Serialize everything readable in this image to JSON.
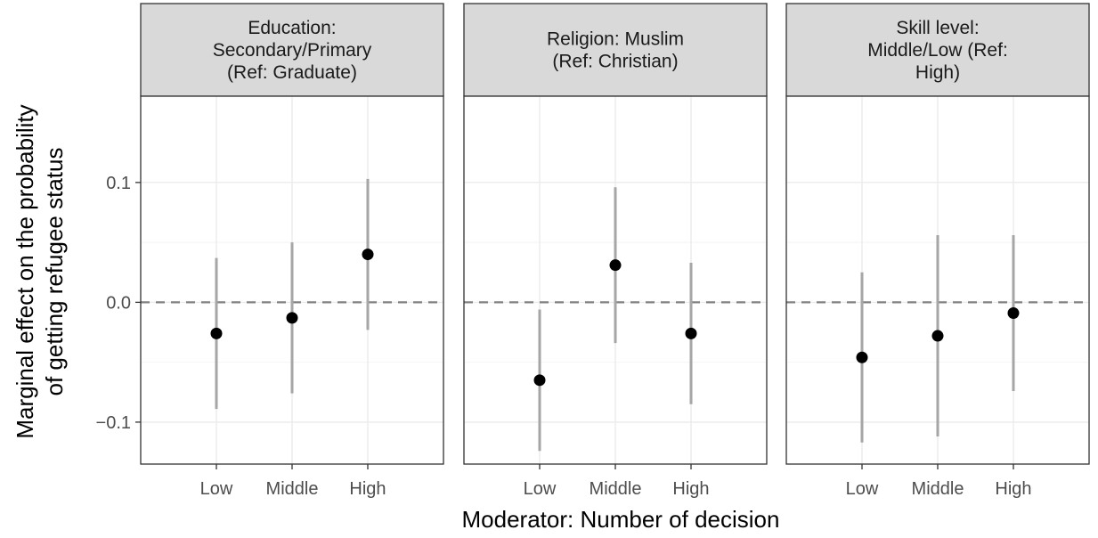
{
  "chart_data": {
    "type": "scatter",
    "subtype": "faceted point estimates with confidence intervals",
    "xlabel": "Moderator: Number of decision",
    "ylabel_lines": [
      "Marginal effect on the probability",
      "of getting refugee status"
    ],
    "categories": [
      "Low",
      "Middle",
      "High"
    ],
    "ylim": [
      -0.135,
      0.172
    ],
    "y_ticks": [
      -0.1,
      0.0,
      0.1
    ],
    "y_tick_labels": [
      "−0.1",
      "0.0",
      "0.1"
    ],
    "reference_line": 0.0,
    "grid": true,
    "colors": {
      "point": "#000000",
      "interval": "#a6a6a6",
      "reference_line": "#808080",
      "strip_background": "#d9d9d9"
    },
    "panels": [
      {
        "title_lines": [
          "Education:",
          "Secondary/Primary",
          "(Ref: Graduate)"
        ],
        "estimates": [
          -0.026,
          -0.013,
          0.04
        ],
        "lower": [
          -0.089,
          -0.076,
          -0.023
        ],
        "upper": [
          0.037,
          0.05,
          0.103
        ]
      },
      {
        "title_lines": [
          "Religion: Muslim",
          "(Ref: Christian)"
        ],
        "estimates": [
          -0.065,
          0.031,
          -0.026
        ],
        "lower": [
          -0.124,
          -0.034,
          -0.085
        ],
        "upper": [
          -0.006,
          0.096,
          0.033
        ]
      },
      {
        "title_lines": [
          "Skill level:",
          "Middle/Low (Ref:",
          "High)"
        ],
        "estimates": [
          -0.046,
          -0.028,
          -0.009
        ],
        "lower": [
          -0.117,
          -0.112,
          -0.074
        ],
        "upper": [
          0.025,
          0.056,
          0.056
        ]
      }
    ]
  }
}
